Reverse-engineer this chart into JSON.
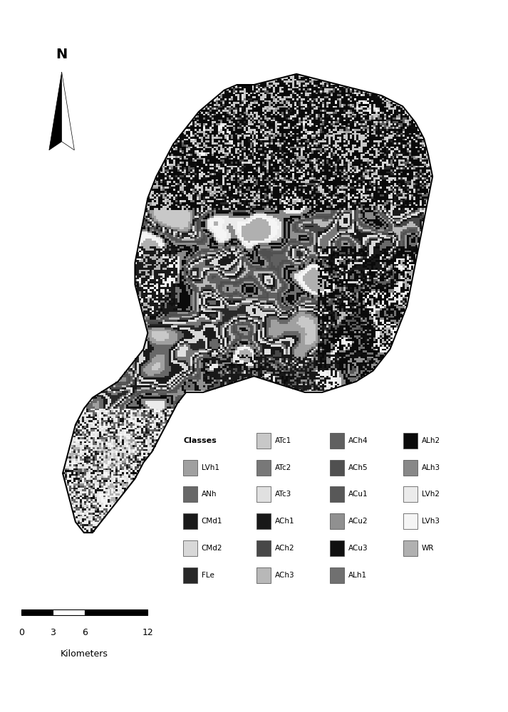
{
  "legend_classes": [
    {
      "name": "ATc1",
      "color": "#c8c8c8"
    },
    {
      "name": "LVh1",
      "color": "#a0a0a0"
    },
    {
      "name": "ANh",
      "color": "#686868"
    },
    {
      "name": "CMd1",
      "color": "#1a1a1a"
    },
    {
      "name": "CMd2",
      "color": "#d8d8d8"
    },
    {
      "name": "FLe",
      "color": "#282828"
    },
    {
      "name": "ATc2",
      "color": "#787878"
    },
    {
      "name": "ATc3",
      "color": "#e0e0e0"
    },
    {
      "name": "ACh1",
      "color": "#181818"
    },
    {
      "name": "ACh2",
      "color": "#484848"
    },
    {
      "name": "ACh3",
      "color": "#b8b8b8"
    },
    {
      "name": "ACh4",
      "color": "#606060"
    },
    {
      "name": "ACh5",
      "color": "#505050"
    },
    {
      "name": "ACu1",
      "color": "#585858"
    },
    {
      "name": "ACu2",
      "color": "#909090"
    },
    {
      "name": "ACu3",
      "color": "#101010"
    },
    {
      "name": "ALh1",
      "color": "#707070"
    },
    {
      "name": "ALh2",
      "color": "#0a0a0a"
    },
    {
      "name": "ALh3",
      "color": "#888888"
    },
    {
      "name": "LVh2",
      "color": "#ebebeb"
    },
    {
      "name": "LVh3",
      "color": "#f5f5f5"
    },
    {
      "name": "WR",
      "color": "#b0b0b0"
    }
  ],
  "scale_text": "0 3 6  12 Kilometers",
  "background_color": "#ffffff",
  "map_border_color": "#000000"
}
